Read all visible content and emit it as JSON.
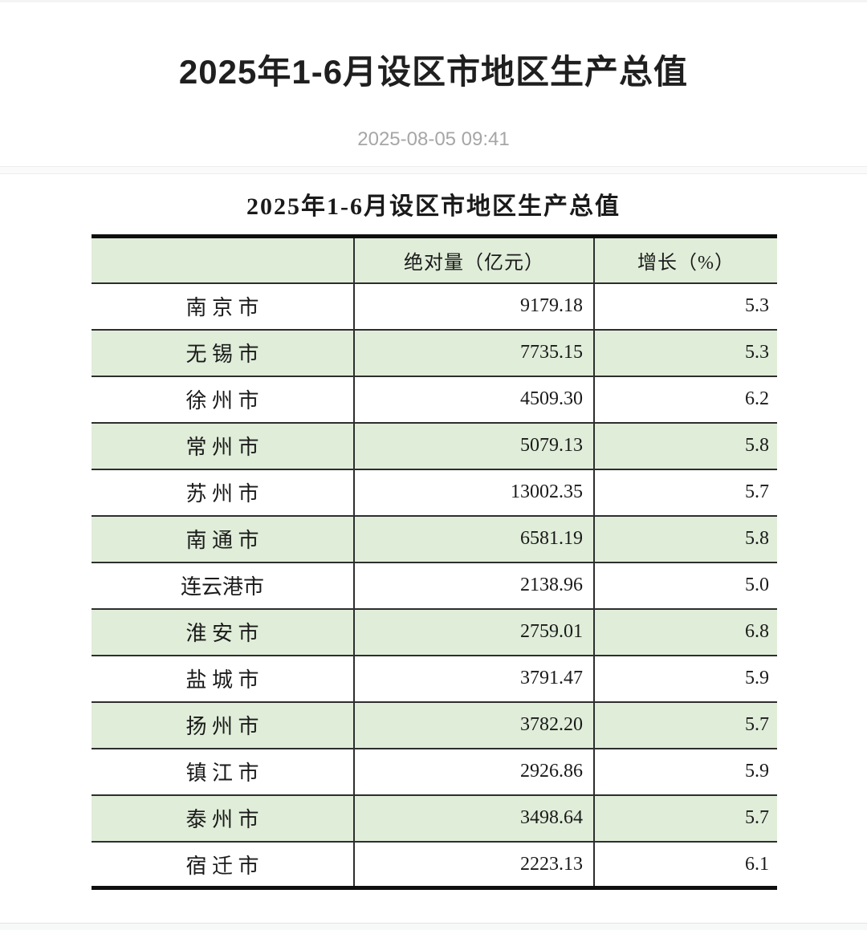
{
  "page": {
    "title": "2025年1-6月设区市地区生产总值",
    "published": "2025-08-05 09:41"
  },
  "table": {
    "caption": "2025年1-6月设区市地区生产总值",
    "columns": {
      "region": "",
      "absolute": "绝对量（亿元）",
      "growth": "增长（%）"
    },
    "rows": [
      {
        "city": "南 京 市",
        "value": "9179.18",
        "growth": "5.3"
      },
      {
        "city": "无 锡 市",
        "value": "7735.15",
        "growth": "5.3"
      },
      {
        "city": "徐 州 市",
        "value": "4509.30",
        "growth": "6.2"
      },
      {
        "city": "常 州 市",
        "value": "5079.13",
        "growth": "5.8"
      },
      {
        "city": "苏 州 市",
        "value": "13002.35",
        "growth": "5.7"
      },
      {
        "city": "南 通 市",
        "value": "6581.19",
        "growth": "5.8"
      },
      {
        "city": "连云港市",
        "value": "2138.96",
        "growth": "5.0"
      },
      {
        "city": "淮 安 市",
        "value": "2759.01",
        "growth": "6.8"
      },
      {
        "city": "盐 城 市",
        "value": "3791.47",
        "growth": "5.9"
      },
      {
        "city": "扬 州 市",
        "value": "3782.20",
        "growth": "5.7"
      },
      {
        "city": "镇 江 市",
        "value": "2926.86",
        "growth": "5.9"
      },
      {
        "city": "泰 州 市",
        "value": "3498.64",
        "growth": "5.7"
      },
      {
        "city": "宿 迁 市",
        "value": "2223.13",
        "growth": "6.1"
      }
    ]
  },
  "colors": {
    "row_green": "#e0edd9",
    "border_thick": "#0f0f0f",
    "border_thin": "#2e2e2e",
    "title_color": "#1f1f1f",
    "date_gray": "#a6a6a6"
  }
}
